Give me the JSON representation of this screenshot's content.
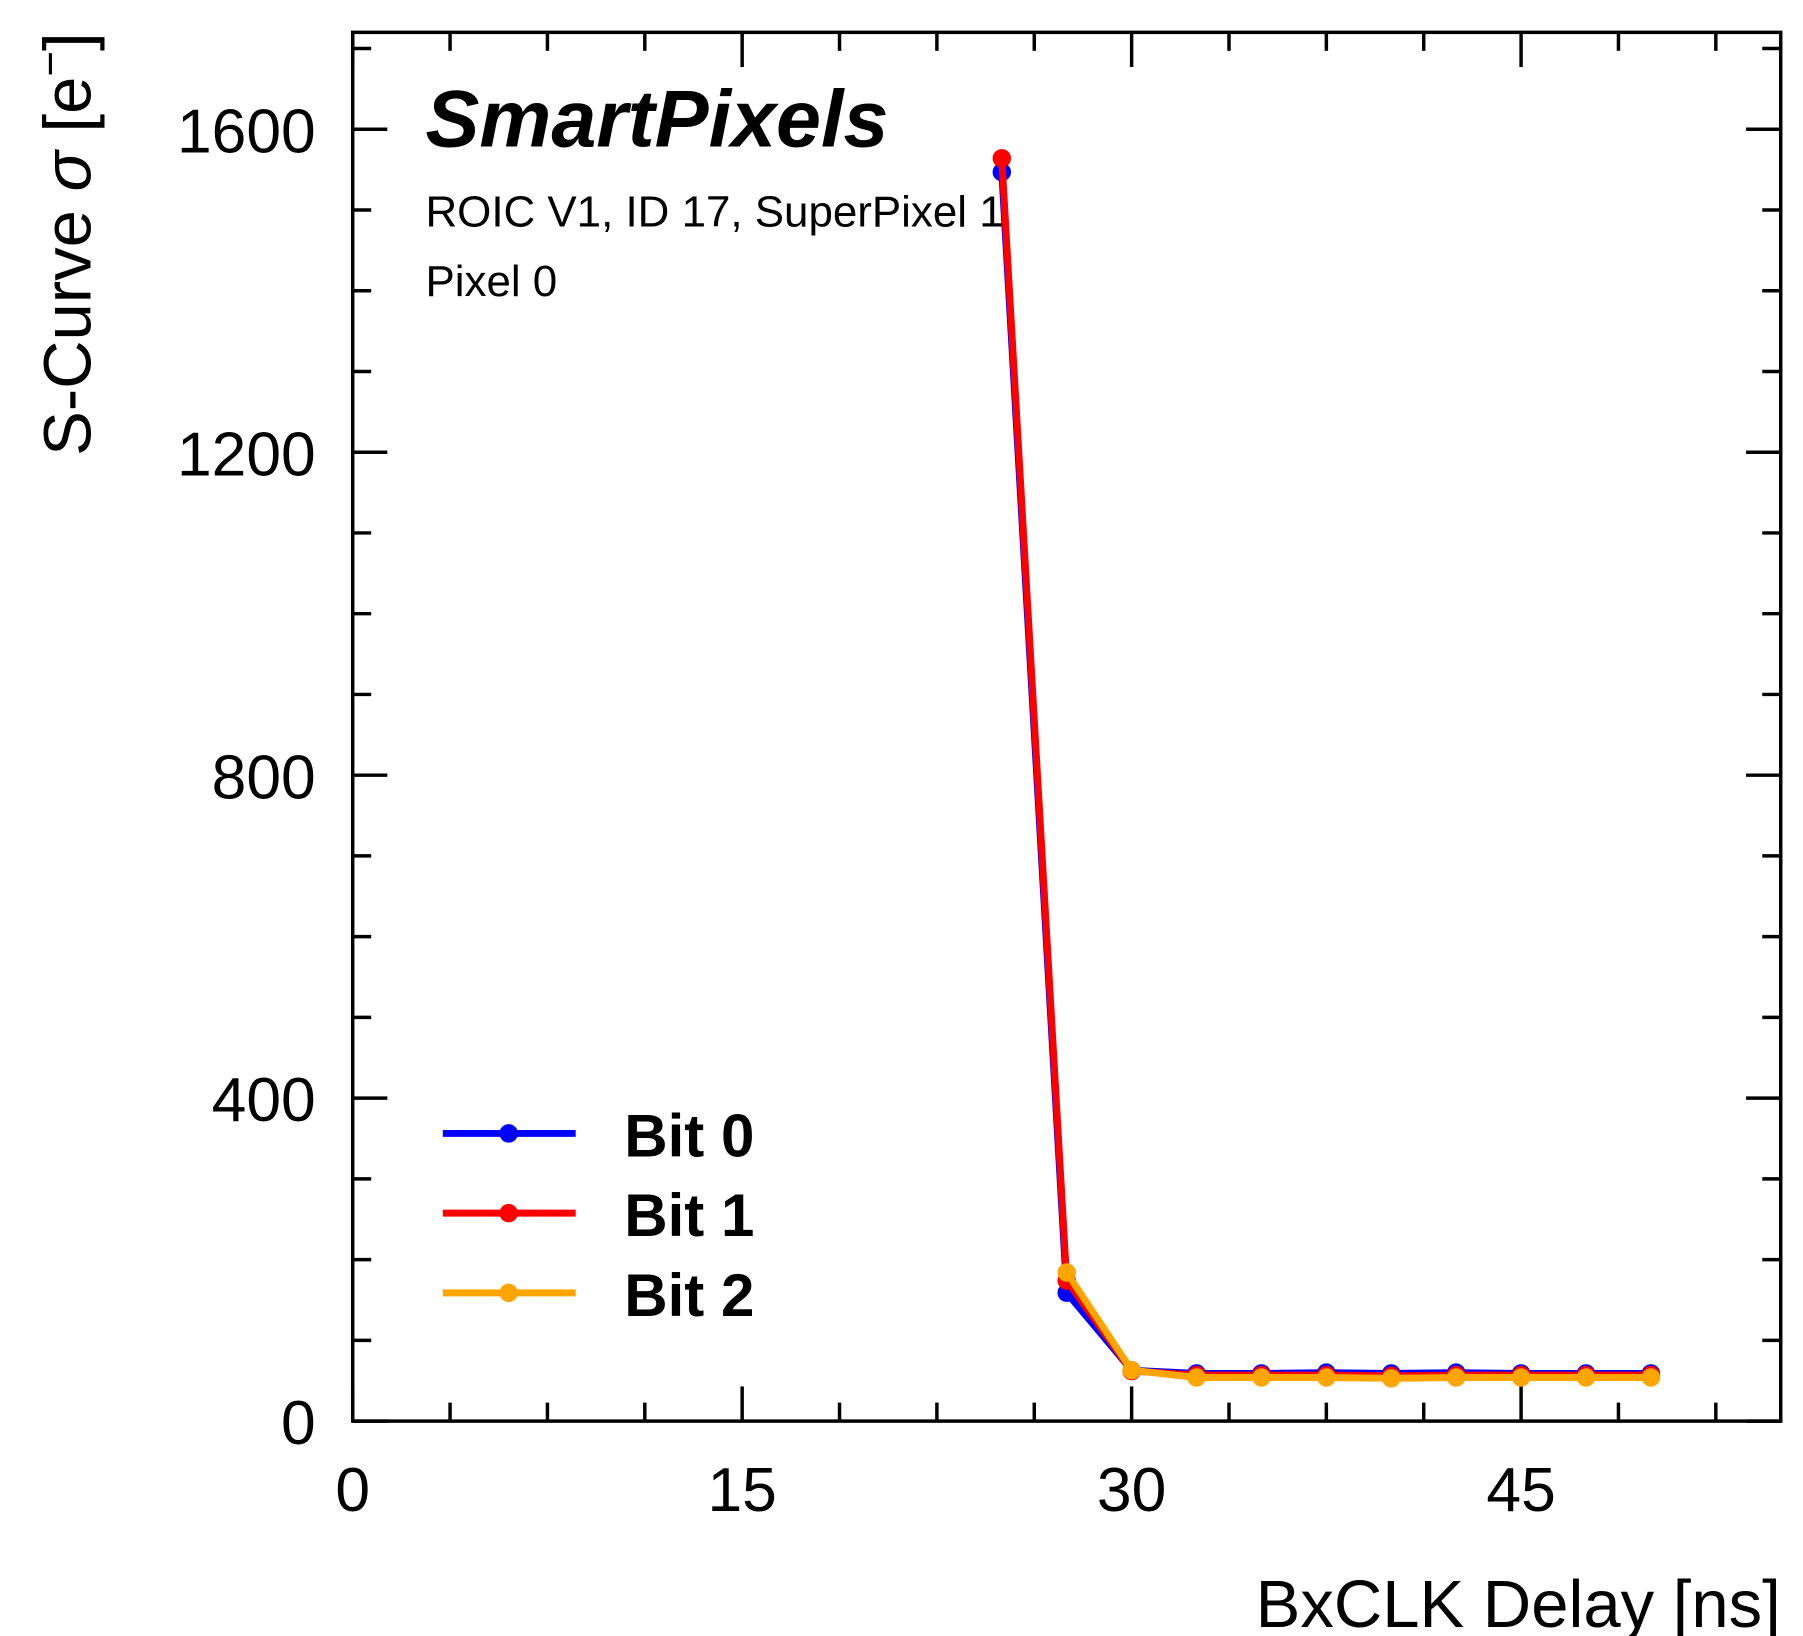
{
  "chart_data": {
    "type": "line",
    "title": "SmartPixels",
    "subtitle_lines": [
      "ROIC V1, ID 17, SuperPixel 1",
      "Pixel 0"
    ],
    "xlabel": "BxCLK Delay [ns]",
    "ylabel_parts": {
      "main": "S-Curve ",
      "sigma": "σ",
      "unit_open": " [e",
      "sup": "−",
      "unit_close": "]"
    },
    "xlim": [
      0,
      55
    ],
    "ylim": [
      0,
      1720
    ],
    "xticks": [
      0,
      15,
      30,
      45
    ],
    "yticks": [
      0,
      400,
      800,
      1200,
      1600
    ],
    "grid": false,
    "legend_position": "bottom-left",
    "series": [
      {
        "name": "Bit 0",
        "color": "#0000ff",
        "x": [
          25,
          27.5,
          30,
          32.5,
          35,
          37.5,
          40,
          42.5,
          45,
          47.5,
          50
        ],
        "values": [
          1547,
          159,
          63,
          59,
          59,
          60,
          59,
          60,
          59,
          59,
          59
        ]
      },
      {
        "name": "Bit 1",
        "color": "#ff0000",
        "x": [
          25,
          27.5,
          30,
          32.5,
          35,
          37.5,
          40,
          42.5,
          45,
          47.5,
          50
        ],
        "values": [
          1564,
          174,
          62,
          57,
          57,
          57,
          56,
          57,
          57,
          57,
          57
        ]
      },
      {
        "name": "Bit 2",
        "color": "#ffa500",
        "x": [
          27.5,
          30,
          32.5,
          35,
          37.5,
          40,
          42.5,
          45,
          47.5,
          50
        ],
        "values": [
          184,
          63,
          54,
          54,
          54,
          53,
          54,
          54,
          54,
          54
        ]
      }
    ]
  }
}
